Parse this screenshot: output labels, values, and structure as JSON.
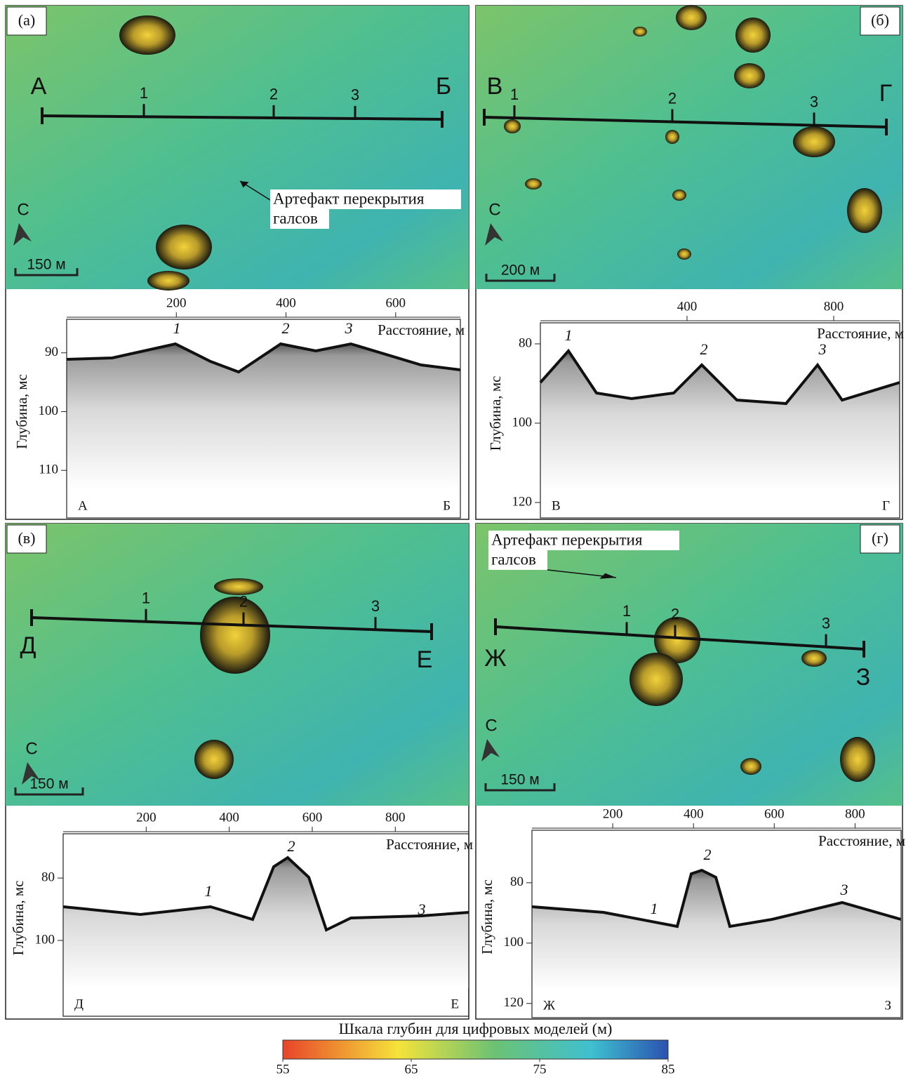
{
  "panels": [
    {
      "label": "(а)",
      "map": {
        "start": "А",
        "end": "Б",
        "points": [
          "1",
          "2",
          "3"
        ],
        "north": "С",
        "scale": "150 м",
        "annotation": [
          "Артефакт перекрытия",
          "галсов"
        ]
      },
      "profile": {
        "x_label": "Расстояние, м",
        "y_label": "Глубина, мс",
        "xlim": [
          0,
          718
        ],
        "xticks": [
          200,
          400,
          600
        ],
        "ylim": [
          84.3,
          118.1
        ],
        "yticks": [
          90,
          100,
          110
        ],
        "peaks": [
          "1",
          "2",
          "3"
        ],
        "start": "А",
        "end": "Б"
      }
    },
    {
      "label": "(б)",
      "map": {
        "start": "В",
        "end": "Г",
        "points": [
          "1",
          "2",
          "3"
        ],
        "north": "С",
        "scale": "200 м"
      },
      "profile": {
        "x_label": "Расстояние, м",
        "y_label": "Глубина, мс",
        "xlim": [
          0,
          980
        ],
        "xticks": [
          400,
          800
        ],
        "ylim": [
          74.7,
          123.9
        ],
        "yticks": [
          80,
          100,
          120
        ],
        "peaks": [
          "1",
          "2",
          "3"
        ],
        "start": "В",
        "end": "Г"
      }
    },
    {
      "label": "(в)",
      "map": {
        "start": "Д",
        "end": "Е",
        "points": [
          "1",
          "2",
          "3"
        ],
        "north": "С",
        "scale": "150 м"
      },
      "profile": {
        "x_label": "Расстояние, м",
        "y_label": "Глубина, мс",
        "xlim": [
          0,
          977
        ],
        "xticks": [
          200,
          400,
          600,
          800
        ],
        "ylim": [
          65.8,
          124.3
        ],
        "yticks": [
          80,
          100
        ],
        "peaks": [
          "1",
          "2",
          "3"
        ],
        "start": "Д",
        "end": "Е"
      }
    },
    {
      "label": "(г)",
      "map": {
        "start": "Ж",
        "end": "З",
        "points": [
          "1",
          "2",
          "3"
        ],
        "north": "С",
        "scale": "150 м",
        "annotation": [
          "Артефакт перекрытия",
          "галсов"
        ]
      },
      "profile": {
        "x_label": "Расстояние, м",
        "y_label": "Глубина, мс",
        "xlim": [
          0,
          914
        ],
        "xticks": [
          200,
          400,
          600,
          800
        ],
        "ylim": [
          62.6,
          124.7
        ],
        "yticks": [
          80,
          100,
          120
        ],
        "peaks": [
          "1",
          "2",
          "3"
        ],
        "start": "Ж",
        "end": "З"
      }
    }
  ],
  "colorbar": {
    "title": "Шкала глубин для цифровых моделей (м)",
    "range": [
      55,
      85
    ],
    "ticks": [
      55,
      65,
      75,
      85
    ]
  }
}
